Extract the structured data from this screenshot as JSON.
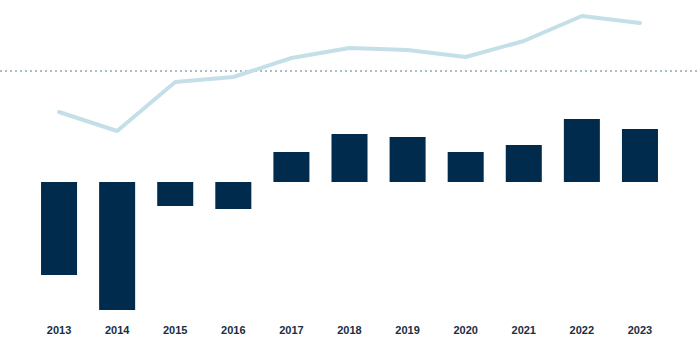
{
  "chart_data": {
    "type": "bar",
    "categories": [
      "2013",
      "2014",
      "2015",
      "2016",
      "2017",
      "2018",
      "2019",
      "2020",
      "2021",
      "2022",
      "2023"
    ],
    "series": [
      {
        "type": "bar",
        "color": "#002b4c",
        "values": [
          -9.3,
          -12.8,
          -2.4,
          -2.7,
          3.0,
          4.8,
          4.5,
          3.0,
          3.7,
          6.3,
          5.3
        ]
      },
      {
        "type": "line",
        "color": "#c5dfe8",
        "values": [
          7.0,
          5.1,
          10.0,
          10.5,
          12.4,
          13.4,
          13.2,
          12.5,
          14.1,
          16.6,
          15.9
        ]
      }
    ],
    "hline": 11.1,
    "ylim": [
      -13.8,
      18.2
    ],
    "yticks": [],
    "tick_labels": "x",
    "grid": false
  }
}
